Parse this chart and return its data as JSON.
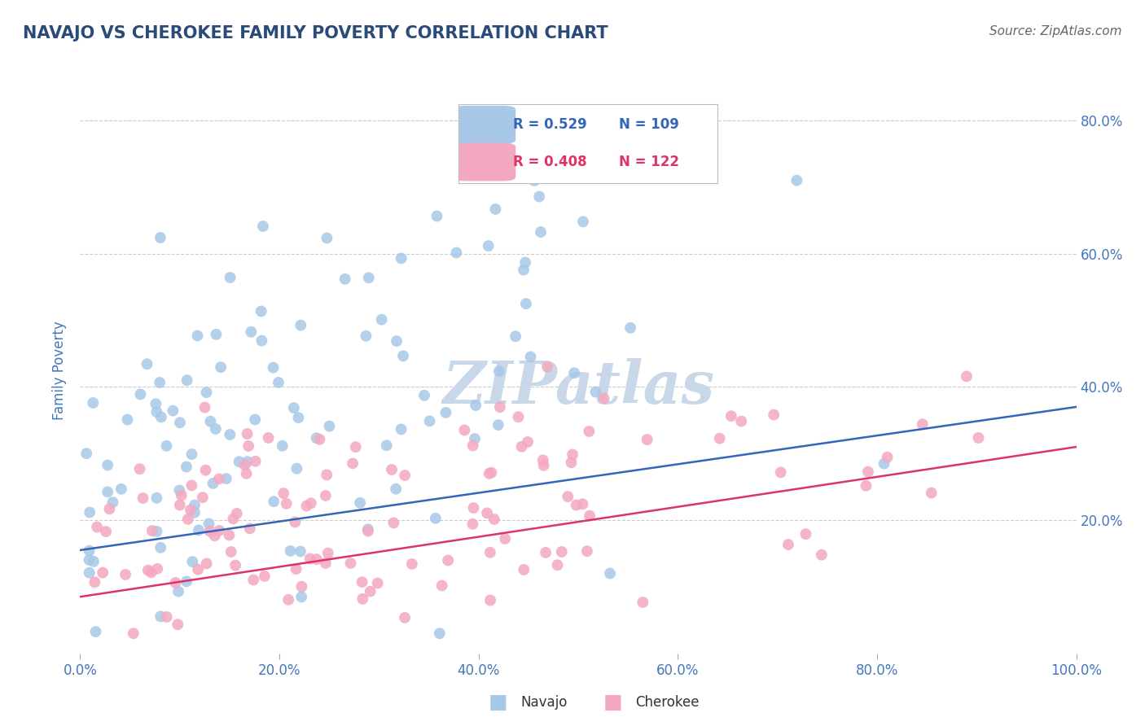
{
  "title": "NAVAJO VS CHEROKEE FAMILY POVERTY CORRELATION CHART",
  "source": "Source: ZipAtlas.com",
  "ylabel": "Family Poverty",
  "navajo_R": 0.529,
  "navajo_N": 109,
  "cherokee_R": 0.408,
  "cherokee_N": 122,
  "navajo_color": "#a8c8e8",
  "cherokee_color": "#f4a8c0",
  "navajo_line_color": "#3366bb",
  "cherokee_line_color": "#dd3366",
  "title_color": "#2a4a7a",
  "axis_label_color": "#4477bb",
  "tick_color": "#4477bb",
  "source_color": "#666666",
  "background_color": "#ffffff",
  "grid_color": "#cccccc",
  "xlim": [
    0,
    1
  ],
  "ylim": [
    0,
    0.85
  ],
  "navajo_line_x0": 0.0,
  "navajo_line_y0": 0.155,
  "navajo_line_x1": 1.0,
  "navajo_line_y1": 0.37,
  "cherokee_line_x0": 0.0,
  "cherokee_line_y0": 0.085,
  "cherokee_line_x1": 1.0,
  "cherokee_line_y1": 0.31,
  "seed": 7,
  "watermark": "ZIPatlas",
  "watermark_color": "#c8d8e8"
}
